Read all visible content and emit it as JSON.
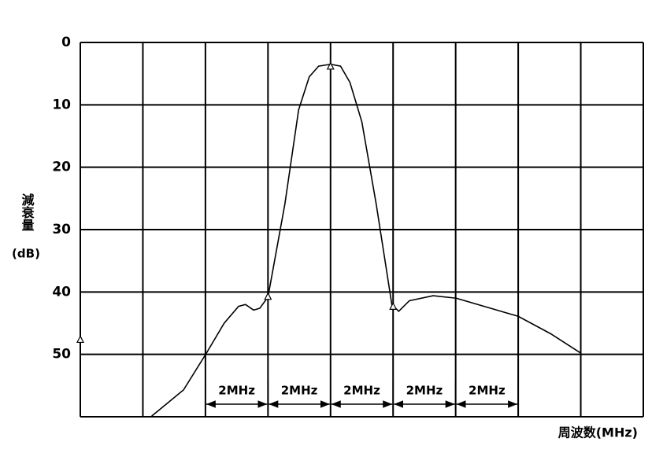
{
  "chart_data": {
    "type": "line",
    "ylabel": "減衰量",
    "yunit": "(dB)",
    "xlabel": "周波数(MHz)",
    "x": [
      1.14,
      1.65,
      2.01,
      2.3,
      2.53,
      2.64,
      2.77,
      2.87,
      3.0,
      3.27,
      3.49,
      3.66,
      3.81,
      4.0,
      4.16,
      4.31,
      4.5,
      4.73,
      4.98,
      5.09,
      5.26,
      5.64,
      6.01,
      6.52,
      7.0,
      7.52,
      8.0
    ],
    "values": [
      59.9,
      55.7,
      49.9,
      45.0,
      42.3,
      42.0,
      42.9,
      42.6,
      40.8,
      25.9,
      10.8,
      5.5,
      3.8,
      3.5,
      3.8,
      6.4,
      12.7,
      25.9,
      42.0,
      43.1,
      41.4,
      40.6,
      41.0,
      42.5,
      43.9,
      46.7,
      49.8
    ],
    "color": "#000000",
    "markers": {
      "x": [
        0,
        3,
        4,
        5
      ],
      "values": [
        47.7,
        40.8,
        3.9,
        42.4
      ]
    },
    "annotations": [
      {
        "text": "2MHz",
        "x": [
          2,
          3
        ]
      },
      {
        "text": "2MHz",
        "x": [
          3,
          4
        ]
      },
      {
        "text": "2MHz",
        "x": [
          4,
          5
        ]
      },
      {
        "text": "2MHz",
        "x": [
          5,
          6
        ]
      },
      {
        "text": "2MHz",
        "x": [
          6,
          7
        ]
      }
    ],
    "xlim": [
      0,
      9
    ],
    "xticks": [
      0,
      1,
      2,
      3,
      4,
      5,
      6,
      7,
      8,
      9
    ],
    "ylim": [
      0,
      60
    ],
    "yticks": [
      0,
      10,
      20,
      30,
      40,
      50
    ],
    "y_inverted": true,
    "grid": true
  }
}
